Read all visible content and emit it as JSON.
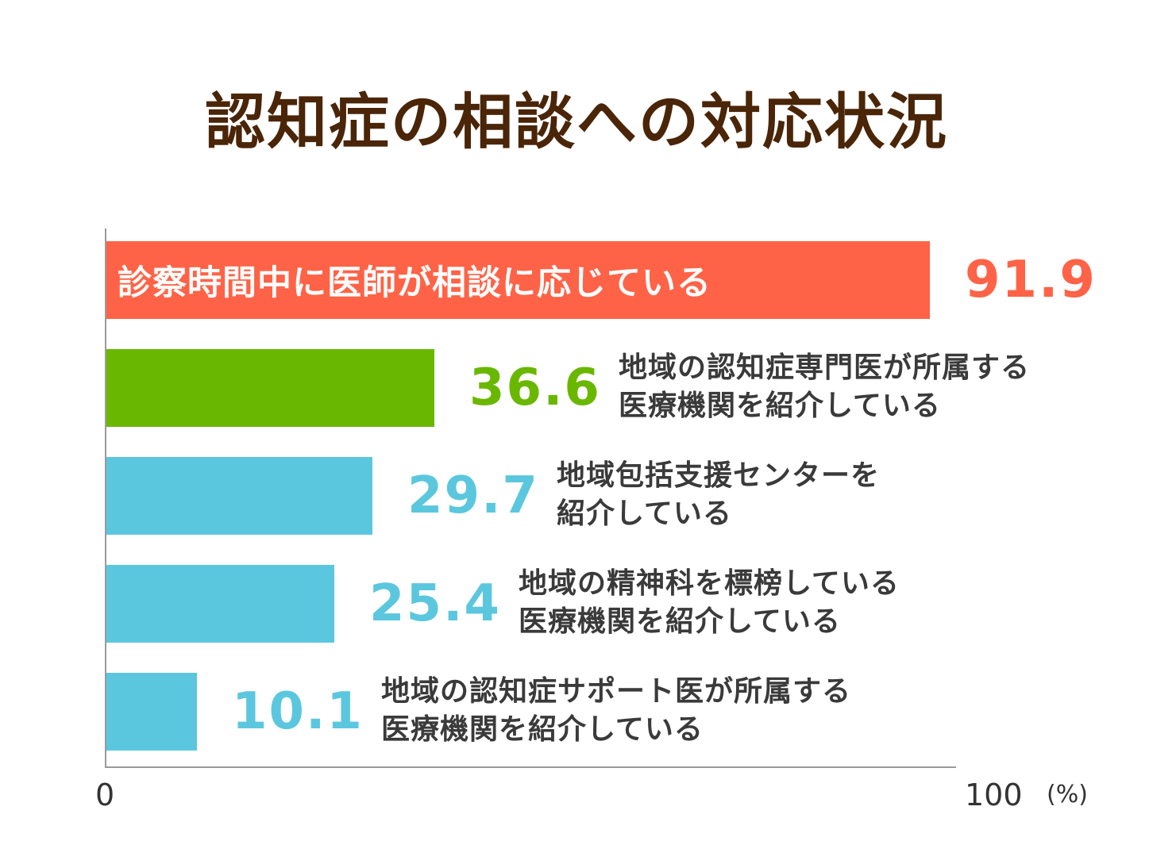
{
  "chart_data": {
    "type": "bar",
    "orientation": "horizontal",
    "title": "認知症の相談への対応状況",
    "categories": [
      "診察時間中に医師が相談に応じている",
      "地域の認知症専門医が所属する\n医療機関を紹介している",
      "地域包括支援センターを\n紹介している",
      "地域の精神科を標榜している\n医療機関を紹介している",
      "地域の認知症サポート医が所属する\n医療機関を紹介している"
    ],
    "values": [
      91.9,
      36.6,
      29.7,
      25.4,
      10.1
    ],
    "value_labels": [
      "91.9",
      "36.6",
      "29.7",
      "25.4",
      "10.1"
    ],
    "colors": [
      "#ff6347",
      "#6ab700",
      "#5bc7de",
      "#5bc7de",
      "#5bc7de"
    ],
    "value_colors": [
      "#ff6347",
      "#6ab700",
      "#5bc7de",
      "#5bc7de",
      "#5bc7de"
    ],
    "xlim": [
      0,
      100
    ],
    "tick_labels": [
      "0",
      "100"
    ],
    "unit": "(%)",
    "grid": false,
    "legend": "none"
  }
}
